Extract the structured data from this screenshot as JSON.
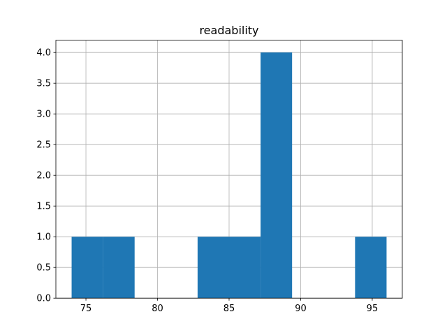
{
  "chart_data": {
    "type": "histogram",
    "title": "readability",
    "bins": [
      74,
      76.2,
      78.4,
      80.6,
      82.8,
      85,
      87.2,
      89.4,
      91.6,
      93.8,
      96
    ],
    "values": [
      1,
      1,
      0,
      0,
      1,
      1,
      4,
      0,
      0,
      1
    ],
    "color": "#1f77b4",
    "xlim": [
      72.9,
      97.1
    ],
    "xticks": [
      75,
      80,
      85,
      90,
      95
    ],
    "ylim": [
      0,
      4.2
    ],
    "yticks": [
      {
        "value": 0,
        "label": "0.0"
      },
      0.5,
      {
        "value": 1,
        "label": "1.0"
      },
      1.5,
      {
        "value": 2,
        "label": "2.0"
      },
      2.5,
      {
        "value": 3,
        "label": "3.0"
      },
      3.5,
      {
        "value": 4,
        "label": "4.0"
      }
    ],
    "grid": true
  }
}
